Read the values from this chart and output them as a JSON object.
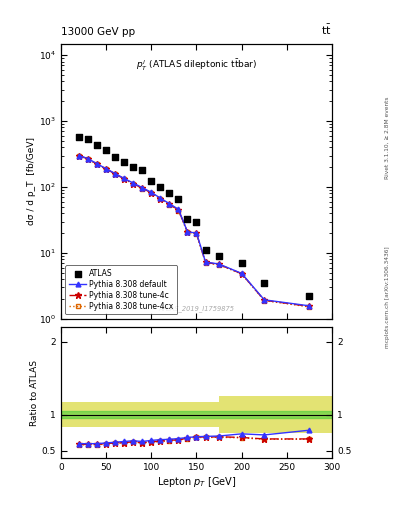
{
  "title_left": "13000 GeV pp",
  "title_right": "tt",
  "annotation": "$p_T^l$ (ATLAS dileptonic ttbar)",
  "watermark": "ATLAS_2019_I1759875",
  "rivet_text": "Rivet 3.1.10, ≥ 2.8M events",
  "arxiv_text": "mcplots.cern.ch [arXiv:1306.3436]",
  "ylabel_main": "dσ / d p_T  [fb/GeV]",
  "ylabel_ratio": "Ratio to ATLAS",
  "xlabel": "Lepton $p_T$ [GeV]",
  "xlim": [
    0,
    300
  ],
  "ylim_main": [
    1.0,
    15000
  ],
  "ylim_ratio": [
    0.4,
    2.2
  ],
  "atlas_x": [
    20,
    30,
    40,
    50,
    60,
    70,
    80,
    90,
    100,
    110,
    120,
    130,
    140,
    150,
    160,
    175,
    200,
    225,
    275
  ],
  "atlas_y": [
    580,
    530,
    430,
    370,
    290,
    240,
    200,
    180,
    125,
    100,
    80,
    65,
    33,
    30,
    11,
    9,
    7,
    3.5,
    2.2
  ],
  "pythia_default_x": [
    20,
    30,
    40,
    50,
    60,
    70,
    80,
    90,
    100,
    110,
    120,
    130,
    140,
    150,
    160,
    175,
    200,
    225,
    275
  ],
  "pythia_default_y": [
    300,
    270,
    225,
    190,
    160,
    135,
    115,
    98,
    83,
    68,
    56,
    46,
    21,
    20,
    7.3,
    6.8,
    4.9,
    1.95,
    1.58
  ],
  "pythia_4c_x": [
    20,
    30,
    40,
    50,
    60,
    70,
    80,
    90,
    100,
    110,
    120,
    130,
    140,
    150,
    160,
    175,
    200,
    225,
    275
  ],
  "pythia_4c_y": [
    298,
    268,
    222,
    188,
    158,
    133,
    113,
    96,
    82,
    67,
    55,
    45,
    21,
    19.8,
    7.2,
    6.7,
    4.85,
    1.92,
    1.55
  ],
  "pythia_4cx_x": [
    20,
    30,
    40,
    50,
    60,
    70,
    80,
    90,
    100,
    110,
    120,
    130,
    140,
    150,
    160,
    175,
    200,
    225,
    275
  ],
  "pythia_4cx_y": [
    295,
    265,
    220,
    186,
    156,
    132,
    112,
    95,
    81,
    66,
    54,
    44,
    20.5,
    19.5,
    7.1,
    6.6,
    4.8,
    1.9,
    1.52
  ],
  "ratio_default_x": [
    20,
    30,
    40,
    50,
    60,
    70,
    80,
    90,
    100,
    110,
    120,
    130,
    140,
    150,
    160,
    175,
    200,
    225,
    275
  ],
  "ratio_default_y": [
    0.6,
    0.6,
    0.6,
    0.61,
    0.62,
    0.63,
    0.64,
    0.63,
    0.645,
    0.655,
    0.66,
    0.67,
    0.685,
    0.695,
    0.7,
    0.705,
    0.735,
    0.72,
    0.785
  ],
  "ratio_4c_x": [
    20,
    30,
    40,
    50,
    60,
    70,
    80,
    90,
    100,
    110,
    120,
    130,
    140,
    150,
    160,
    175,
    200,
    225,
    275
  ],
  "ratio_4c_y": [
    0.59,
    0.59,
    0.59,
    0.6,
    0.61,
    0.615,
    0.625,
    0.615,
    0.625,
    0.635,
    0.645,
    0.655,
    0.675,
    0.695,
    0.69,
    0.695,
    0.685,
    0.665,
    0.665
  ],
  "ratio_4cx_x": [
    20,
    30,
    40,
    50,
    60,
    70,
    80,
    90,
    100,
    110,
    120,
    130,
    140,
    150,
    160,
    175,
    200,
    225,
    275
  ],
  "ratio_4cx_y": [
    0.585,
    0.585,
    0.585,
    0.595,
    0.605,
    0.61,
    0.62,
    0.61,
    0.62,
    0.63,
    0.64,
    0.65,
    0.67,
    0.685,
    0.685,
    0.688,
    0.68,
    0.66,
    0.66
  ],
  "band_green_y1": 0.95,
  "band_green_y2": 1.05,
  "band_yellow_x1": 0,
  "band_yellow_x2": 175,
  "band_yellow_y1": 0.83,
  "band_yellow_y2": 1.17,
  "band_yellow2_x1": 175,
  "band_yellow2_x2": 300,
  "band_yellow2_y1": 0.75,
  "band_yellow2_y2": 1.25,
  "color_default": "#3333ff",
  "color_4c": "#cc0000",
  "color_4cx": "#dd6600",
  "color_atlas": "#000000",
  "color_green": "#33cc33",
  "color_yellow": "#cccc00"
}
